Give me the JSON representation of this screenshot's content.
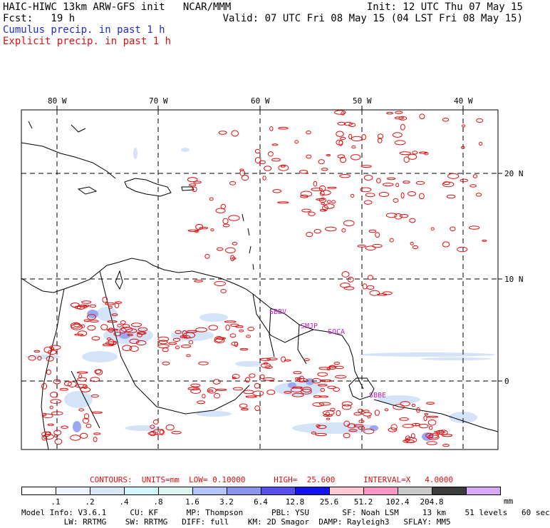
{
  "header": {
    "title": "HAIC-HIWC 13km ARW-GFS init   NCAR/MMM",
    "fcst": "Fcst:   19 h",
    "init": "Init: 12 UTC Thu 07 May 15",
    "valid": "Valid: 07 UTC Fri 08 May 15 (04 LST Fri 08 May 15)",
    "cumulus": "Cumulus precip. in past 1 h",
    "explicit": "Explicit precip. in past 1 h"
  },
  "map": {
    "lon_labels": [
      "80 W",
      "70 W",
      "60 W",
      "50 W",
      "40 W"
    ],
    "lat_labels": [
      "20 N",
      "10 N",
      "0"
    ],
    "station_labels": [
      "SBBV",
      "SMJP",
      "SOCA",
      "SBBE"
    ]
  },
  "legend": {
    "contours": "CONTOURS:  UNITS=mm  LOW= 0.10000      HIGH=  25.600      INTERVAL=X   4.0000",
    "levels": [
      ".1",
      ".2",
      ".4",
      ".8",
      "1.6",
      "3.2",
      "6.4",
      "12.8",
      "25.6",
      "51.2",
      "102.4",
      "204.8"
    ],
    "units": "mm",
    "colors": [
      "#ffffff",
      "#eef2fb",
      "#d8e8f8",
      "#d2f6ff",
      "#dcf4f0",
      "#b4c4f8",
      "#8c96f0",
      "#5a50f0",
      "#1414f0",
      "#ffc8d2",
      "#ff96c8",
      "#c8c8c8",
      "#3c3c3c",
      "#d8a8f8"
    ]
  },
  "model_info": {
    "line1": "Model Info: V3.6.1     CU: KF      MP: Thompson      PBL: YSU       SF: Noah LSM     13 km    51 levels   60 sec",
    "line2": "         LW: RRTMG    SW: RRTMG   DIFF: full    KM: 2D Smagor  DAMP: Rayleigh3   SFLAY: MM5"
  }
}
